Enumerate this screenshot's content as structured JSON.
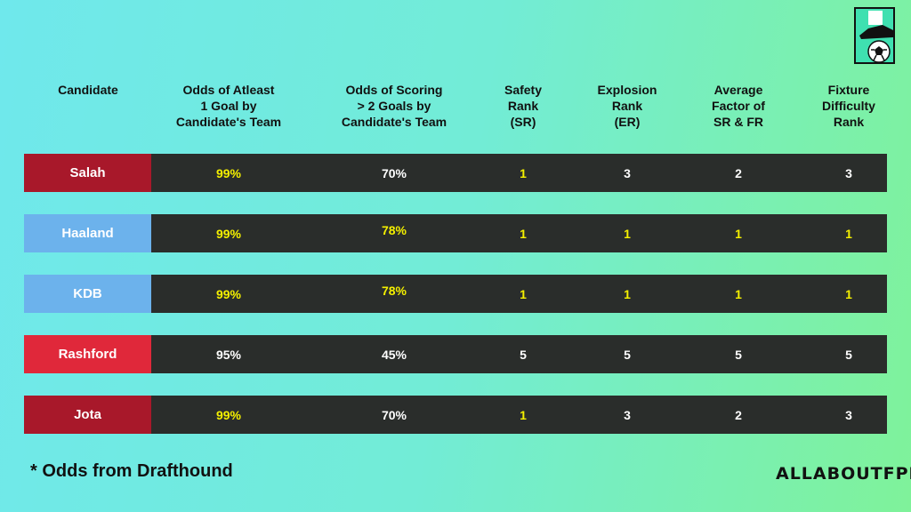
{
  "columns": [
    "Candidate",
    "Odds of Atleast\n1 Goal by\nCandidate's Team",
    "Odds of Scoring\n> 2 Goals by\nCandidate's Team",
    "Safety\nRank\n(SR)",
    "Explosion\nRank\n(ER)",
    "Average\nFactor of\nSR & FR",
    "Fixture\nDifficulty\nRank"
  ],
  "rows": [
    {
      "name": "Salah",
      "color": "#a8182a",
      "values": [
        "99%",
        "70%",
        "1",
        "3",
        "2",
        "3"
      ],
      "highlight": [
        true,
        false,
        true,
        false,
        false,
        false
      ],
      "raised": [
        false,
        false,
        false,
        false,
        false,
        false
      ]
    },
    {
      "name": "Haaland",
      "color": "#6cb2ec",
      "values": [
        "99%",
        "78%",
        "1",
        "1",
        "1",
        "1"
      ],
      "highlight": [
        true,
        true,
        true,
        true,
        true,
        true
      ],
      "raised": [
        false,
        true,
        false,
        false,
        false,
        false
      ]
    },
    {
      "name": "KDB",
      "color": "#6cb2ec",
      "values": [
        "99%",
        "78%",
        "1",
        "1",
        "1",
        "1"
      ],
      "highlight": [
        true,
        true,
        true,
        true,
        true,
        true
      ],
      "raised": [
        false,
        true,
        false,
        false,
        false,
        false
      ]
    },
    {
      "name": "Rashford",
      "color": "#e0283a",
      "values": [
        "95%",
        "45%",
        "5",
        "5",
        "5",
        "5"
      ],
      "highlight": [
        false,
        false,
        false,
        false,
        false,
        false
      ],
      "raised": [
        false,
        false,
        false,
        false,
        false,
        false
      ]
    },
    {
      "name": "Jota",
      "color": "#a8182a",
      "values": [
        "99%",
        "70%",
        "1",
        "3",
        "2",
        "3"
      ],
      "highlight": [
        true,
        false,
        true,
        false,
        false,
        false
      ],
      "raised": [
        false,
        false,
        false,
        false,
        false,
        false
      ]
    }
  ],
  "footnote": "*  Odds from Drafthound",
  "brand": "ALLABOUTFPL",
  "logo_icon": "football-boot-and-ball-icon"
}
